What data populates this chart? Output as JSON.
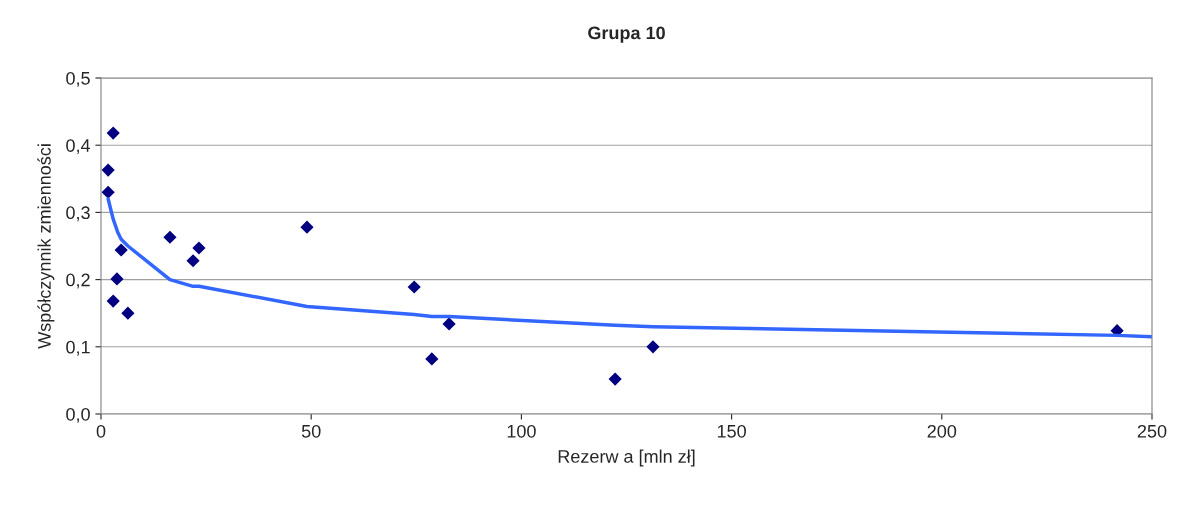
{
  "chart_data": {
    "type": "scatter",
    "title": "Grupa 10",
    "xlabel": "Rezerw a [mln zł]",
    "ylabel": "Współczynnik zmienności",
    "xlim": [
      0,
      250
    ],
    "xticks": [
      0,
      50,
      100,
      150,
      200,
      250
    ],
    "ylim": [
      0,
      0.5
    ],
    "yticks": [
      {
        "value": 0,
        "label": "0,0"
      },
      {
        "value": 0.1,
        "label": "0,1"
      },
      {
        "value": 0.2,
        "label": "0,2"
      },
      {
        "value": 0.3,
        "label": "0,3"
      },
      {
        "value": 0.4,
        "label": "0,4"
      },
      {
        "value": 0.5,
        "label": "0,5"
      }
    ],
    "grid": "y",
    "legend": false,
    "series": [
      {
        "color": "#000080",
        "marker": "diamond",
        "x": [
          1.7,
          2.9,
          1.7,
          4.8,
          3.8,
          2.9,
          6.4,
          16.4,
          21.9,
          23.3,
          49.0,
          74.5,
          78.7,
          82.8,
          122.3,
          131.3,
          241.7
        ],
        "values": [
          0.363,
          0.418,
          0.33,
          0.244,
          0.201,
          0.168,
          0.15,
          0.263,
          0.228,
          0.247,
          0.278,
          0.189,
          0.082,
          0.134,
          0.052,
          0.1,
          0.124
        ]
      },
      {
        "type": "line",
        "color": "#3366ff",
        "marker": "none",
        "x": [
          1.7,
          2.9,
          4.0,
          4.8,
          6.4,
          16.4,
          21.9,
          23.3,
          49.0,
          74.5,
          78.7,
          82.8,
          122.3,
          131.3,
          241.7,
          250
        ],
        "values": [
          0.32,
          0.29,
          0.27,
          0.26,
          0.25,
          0.2,
          0.19,
          0.19,
          0.16,
          0.148,
          0.145,
          0.145,
          0.132,
          0.13,
          0.117,
          0.115
        ]
      }
    ]
  }
}
